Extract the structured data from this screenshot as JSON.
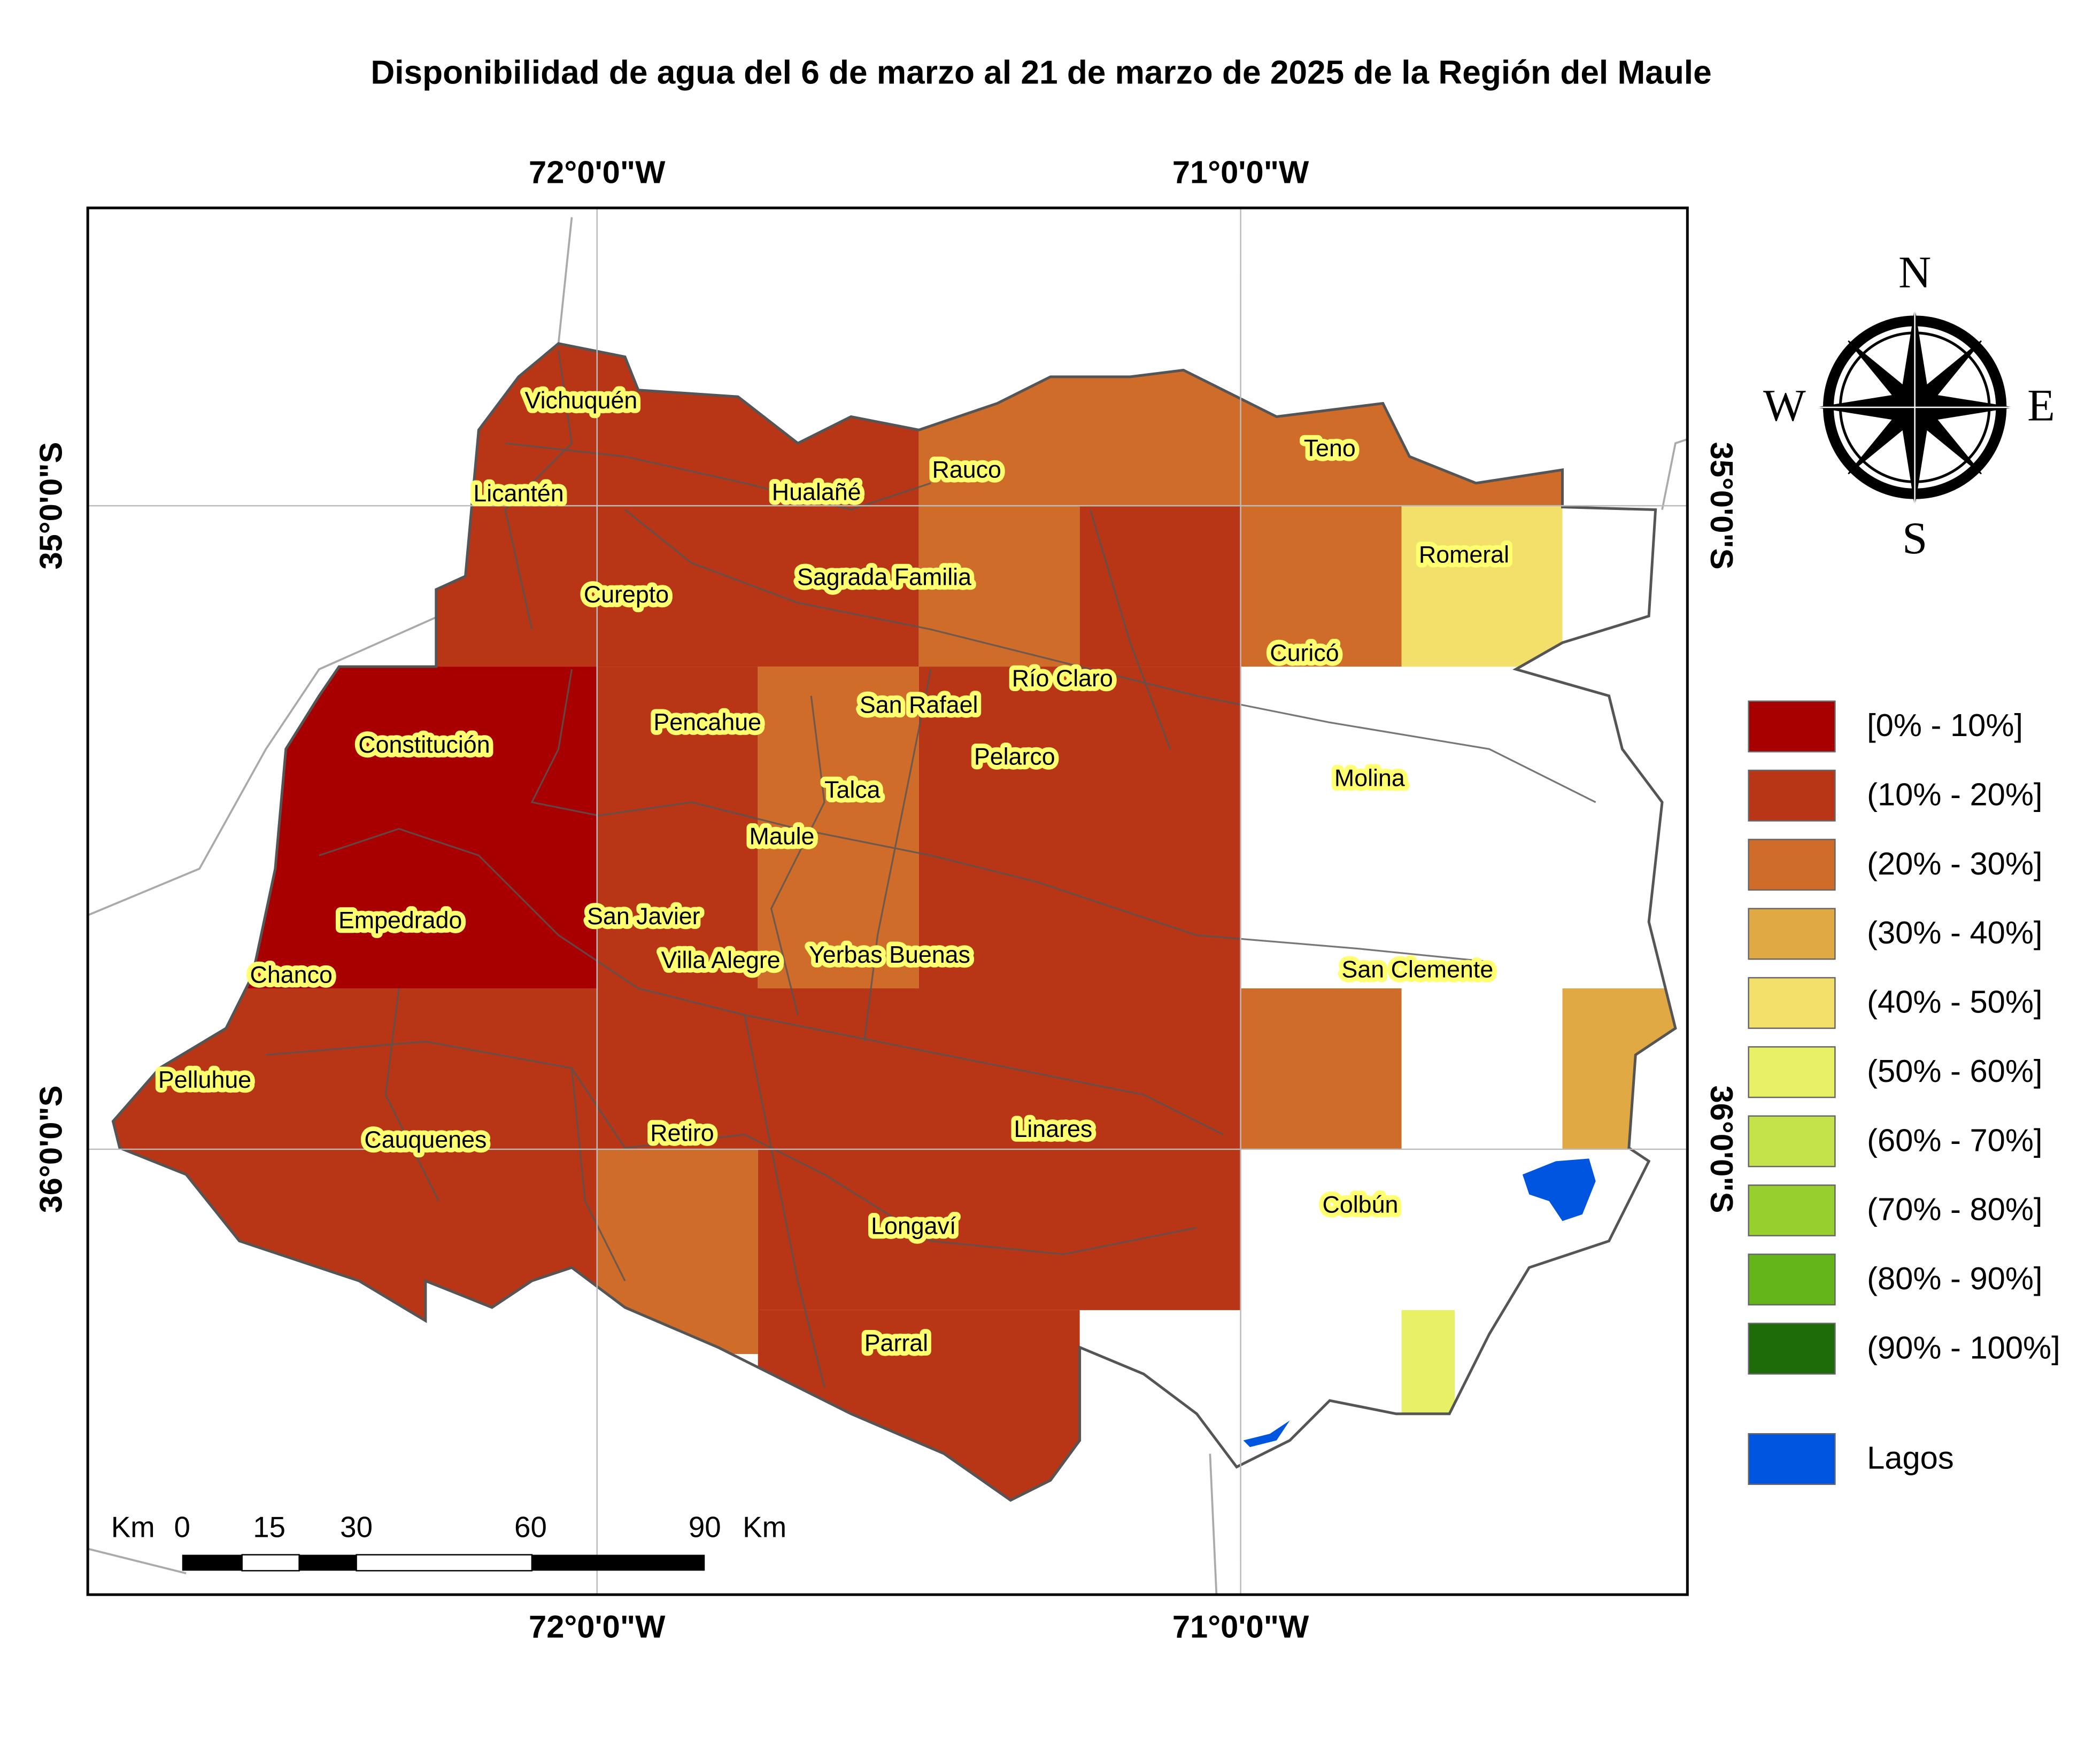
{
  "title": "Disponibilidad de agua del 6 de marzo al 21 de marzo de 2025 de la Región del Maule",
  "graticule": {
    "lon_labels": [
      "72°0'0\"W",
      "71°0'0\"W"
    ],
    "lat_labels": [
      "35°0'0\"S",
      "36°0'0\"S"
    ]
  },
  "communes": [
    "Vichuquén",
    "Licantén",
    "Hualañé",
    "Rauco",
    "Teno",
    "Romeral",
    "Curepto",
    "Sagrada Familia",
    "Curicó",
    "Río Claro",
    "San Rafael",
    "Pencahue",
    "Constitución",
    "Pelarco",
    "Molina",
    "Talca",
    "Maule",
    "Empedrado",
    "San Javier",
    "Villa Alegre",
    "Yerbas Buenas",
    "San Clemente",
    "Chanco",
    "Pelluhue",
    "Cauquenes",
    "Retiro",
    "Linares",
    "Colbún",
    "Longaví",
    "Parral"
  ],
  "legend": [
    {
      "label": "[0% - 10%]",
      "color": "#a80000"
    },
    {
      "label": "(10% - 20%]",
      "color": "#b83616"
    },
    {
      "label": "(20% - 30%]",
      "color": "#cf6c2a"
    },
    {
      "label": "(30% - 40%]",
      "color": "#e0a944"
    },
    {
      "label": "(40% - 50%]",
      "color": "#f2e06a"
    },
    {
      "label": "(50% - 60%]",
      "color": "#e8f066"
    },
    {
      "label": "(60% - 70%]",
      "color": "#c4e34a"
    },
    {
      "label": "(70% - 80%]",
      "color": "#97cf2f"
    },
    {
      "label": "(80% - 90%]",
      "color": "#63b51a"
    },
    {
      "label": "(90% - 100%]",
      "color": "#1e6b0a"
    },
    {
      "label": "Lagos",
      "color": "#0055e0"
    }
  ],
  "scale_bar": {
    "unit": "Km",
    "ticks": [
      0,
      15,
      30,
      60,
      90
    ]
  },
  "compass": {
    "n": "N",
    "s": "S",
    "e": "E",
    "w": "W"
  }
}
